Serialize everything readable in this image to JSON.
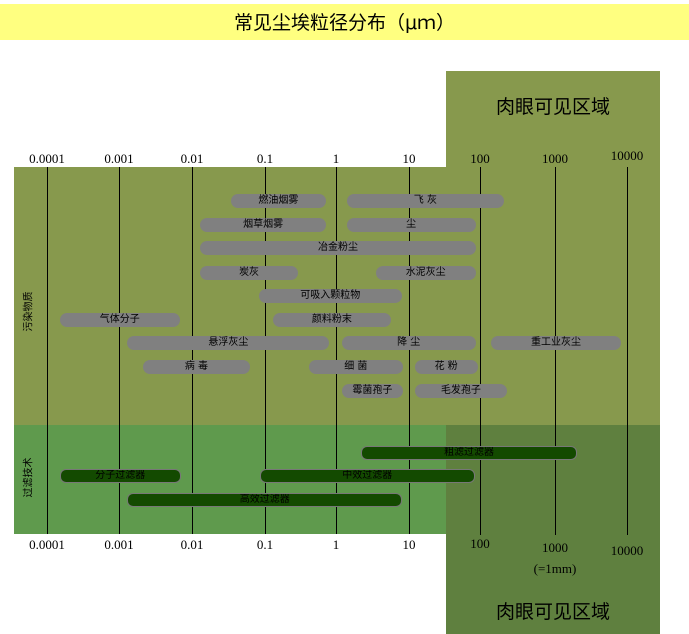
{
  "title": "常见尘埃粒径分布（μｍ）",
  "visible_region_label": "肉眼可见区域",
  "side_labels": {
    "pollutants": "污染物质",
    "filtration": "过滤技术"
  },
  "colors": {
    "title_band": "#ffff80",
    "pollutant_band": "#87994d",
    "filter_band": "#5f9a4d",
    "visible_lower": "#5f803f",
    "pollutant_bar": "#808080",
    "filter_bar": "#134a00"
  },
  "chart_data": {
    "type": "range-bar",
    "scale": "log",
    "unit": "μm",
    "ticks": [
      "0.0001",
      "0.001",
      "0.01",
      "0.1",
      "1",
      "10",
      "100",
      "1000",
      "10000"
    ],
    "tick_note": "(=1mm)",
    "pollutants": [
      {
        "label": "燃油烟雾",
        "row": 0,
        "min": 0.034,
        "max": 0.72
      },
      {
        "label": "飞 灰",
        "row": 0,
        "min": 1.4,
        "max": 210
      },
      {
        "label": "烟草烟雾",
        "row": 1,
        "min": 0.013,
        "max": 0.72
      },
      {
        "label": "尘",
        "row": 1,
        "min": 1.4,
        "max": 87
      },
      {
        "label": "冶金粉尘",
        "row": 2,
        "min": 0.013,
        "max": 87
      },
      {
        "label": "炭灰",
        "row": 3,
        "min": 0.013,
        "max": 0.29
      },
      {
        "label": "水泥灰尘",
        "row": 3,
        "min": 3.5,
        "max": 87
      },
      {
        "label": "可吸入颗粒物",
        "row": 4,
        "min": 0.083,
        "max": 7.9
      },
      {
        "label": "气体分子",
        "row": 5,
        "min": 0.00015,
        "max": 0.0068
      },
      {
        "label": "颜料粉末",
        "row": 5,
        "min": 0.13,
        "max": 5.6
      },
      {
        "label": "悬浮灰尘",
        "row": 6,
        "min": 0.0013,
        "max": 0.81
      },
      {
        "label": "降 尘",
        "row": 6,
        "min": 1.2,
        "max": 87
      },
      {
        "label": "重工业灰尘",
        "row": 6,
        "min": 140,
        "max": 8300
      },
      {
        "label": "病 毒",
        "row": 7,
        "min": 0.0021,
        "max": 0.063
      },
      {
        "label": "细 菌",
        "row": 7,
        "min": 0.41,
        "max": 8.3
      },
      {
        "label": "花 粉",
        "row": 7,
        "min": 12,
        "max": 93
      },
      {
        "label": "霉菌孢子",
        "row": 8,
        "min": 1.2,
        "max": 8.3
      },
      {
        "label": "毛发孢子",
        "row": 8,
        "min": 12,
        "max": 230
      }
    ],
    "filters": [
      {
        "label": "粗滤过滤器",
        "row": 0,
        "min": 2.2,
        "max": 1900
      },
      {
        "label": "分子过滤器",
        "row": 1,
        "min": 0.00015,
        "max": 0.0066
      },
      {
        "label": "中效过滤器",
        "row": 1,
        "min": 0.085,
        "max": 79
      },
      {
        "label": "高效过滤器",
        "row": 2,
        "min": 0.0013,
        "max": 7.6
      }
    ]
  }
}
